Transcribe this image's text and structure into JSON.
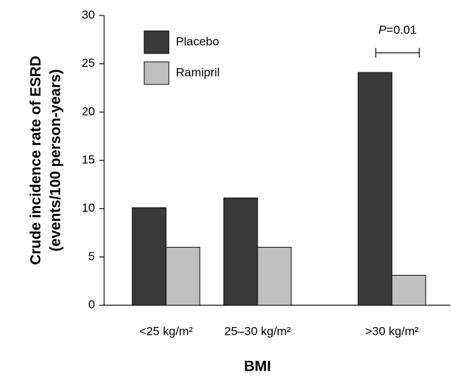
{
  "chart_data": {
    "type": "bar",
    "x_label": "BMI",
    "y_label": [
      "Crude incidence rate of ESRD",
      "(events/100 person-years)"
    ],
    "categories": [
      "<25 kg/m²",
      "25–30 kg/m²",
      ">30 kg/m²"
    ],
    "series": [
      {
        "name": "Placebo",
        "color": "#3a3a3a",
        "values": [
          10.1,
          11.1,
          24.1
        ]
      },
      {
        "name": "Ramipril",
        "color": "#c0c0c0",
        "values": [
          6,
          6,
          3.1
        ]
      }
    ],
    "ylim": [
      0,
      30
    ],
    "yticks": [
      0,
      5,
      10,
      15,
      20,
      25,
      30
    ],
    "annotation": "P=0.01"
  }
}
